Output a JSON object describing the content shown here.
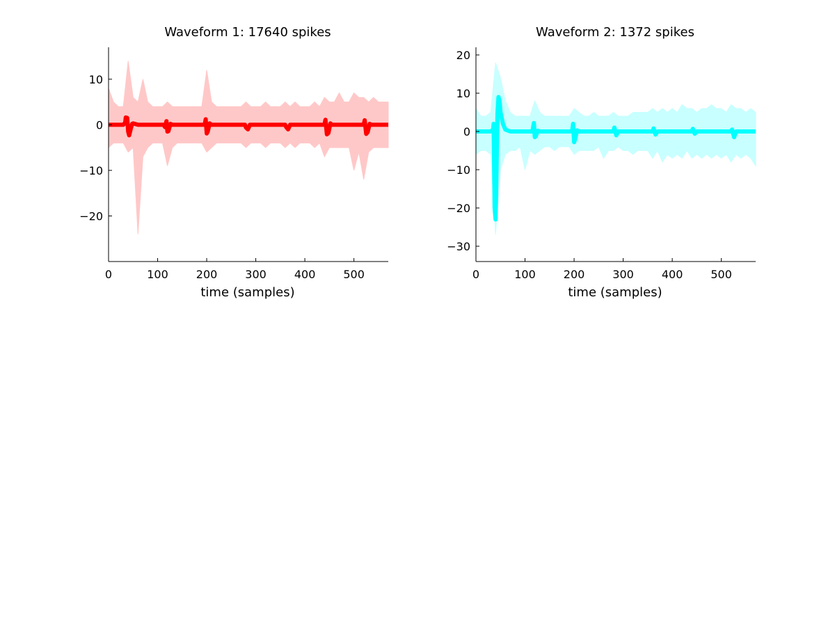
{
  "chart_data": [
    {
      "type": "line",
      "title": "Waveform 1: 17640 spikes",
      "xlabel": "time (samples)",
      "ylabel": "",
      "xlim": [
        0,
        570
      ],
      "ylim": [
        -30,
        17
      ],
      "xticks": [
        0,
        100,
        200,
        300,
        400,
        500
      ],
      "yticks": [
        10,
        0,
        -10,
        -20
      ],
      "grid": false,
      "colors": {
        "mean": "#ff0000",
        "band": "#ffc8c8"
      },
      "series": [
        {
          "role": "mean",
          "x": [
            0,
            30,
            34,
            35,
            38,
            40,
            42,
            45,
            48,
            50,
            60,
            112,
            115,
            118,
            120,
            122,
            126,
            130,
            196,
            198,
            200,
            202,
            206,
            210,
            278,
            280,
            284,
            288,
            360,
            362,
            366,
            370,
            440,
            442,
            445,
            448,
            452,
            455,
            520,
            522,
            525,
            528,
            532,
            535,
            570
          ],
          "y": [
            0,
            0,
            0.5,
            1.6,
            1.5,
            -1.5,
            -2.3,
            -1.0,
            0.2,
            0.3,
            0,
            0,
            -0.5,
            0.8,
            -1.5,
            -1.4,
            0.2,
            0,
            0,
            1.2,
            -1.9,
            -1.5,
            0.3,
            0,
            0,
            -0.6,
            -1.0,
            0,
            0,
            -0.5,
            -1.0,
            0,
            0,
            1.1,
            -2.1,
            -1.8,
            0.3,
            0,
            0,
            1.0,
            -2.0,
            -1.6,
            0.2,
            0,
            0
          ]
        }
      ],
      "band": {
        "x": [
          0,
          10,
          20,
          30,
          40,
          50,
          60,
          70,
          80,
          90,
          100,
          110,
          120,
          130,
          140,
          150,
          160,
          170,
          180,
          190,
          200,
          210,
          220,
          230,
          240,
          250,
          260,
          270,
          280,
          290,
          300,
          310,
          320,
          330,
          340,
          350,
          360,
          370,
          380,
          390,
          400,
          410,
          420,
          430,
          440,
          450,
          460,
          470,
          480,
          490,
          500,
          510,
          520,
          530,
          540,
          550,
          560,
          570
        ],
        "upper": [
          8,
          5,
          4,
          4,
          14,
          6,
          5,
          10,
          5,
          4,
          4,
          4,
          5,
          4,
          4,
          4,
          4,
          4,
          4,
          4,
          12,
          5,
          4,
          4,
          4,
          4,
          4,
          4,
          5,
          4,
          4,
          4,
          5,
          4,
          4,
          4,
          5,
          4,
          5,
          4,
          4,
          4,
          5,
          4,
          6,
          5,
          5,
          7,
          5,
          5,
          7,
          6,
          6,
          5,
          6,
          5,
          5,
          5
        ],
        "lower": [
          -5,
          -4,
          -4,
          -4,
          -6,
          -5,
          -24,
          -7,
          -5,
          -4,
          -4,
          -4,
          -9,
          -5,
          -4,
          -4,
          -4,
          -4,
          -4,
          -4,
          -6,
          -5,
          -4,
          -4,
          -4,
          -4,
          -4,
          -4,
          -5,
          -4,
          -4,
          -4,
          -5,
          -4,
          -4,
          -4,
          -5,
          -4,
          -5,
          -4,
          -4,
          -4,
          -5,
          -4,
          -7,
          -5,
          -5,
          -5,
          -5,
          -5,
          -10,
          -6,
          -12,
          -6,
          -5,
          -5,
          -5,
          -5
        ]
      }
    },
    {
      "type": "line",
      "title": "Waveform 2: 1372 spikes",
      "xlabel": "time (samples)",
      "ylabel": "",
      "xlim": [
        0,
        570
      ],
      "ylim": [
        -34,
        22
      ],
      "xticks": [
        0,
        100,
        200,
        300,
        400,
        500
      ],
      "yticks": [
        20,
        10,
        0,
        -10,
        -20,
        -30
      ],
      "grid": false,
      "colors": {
        "mean": "#00ffff",
        "band": "#c8ffff"
      },
      "series": [
        {
          "role": "mean",
          "x": [
            0,
            30,
            35,
            36,
            38,
            40,
            42,
            44,
            46,
            48,
            50,
            55,
            60,
            70,
            80,
            115,
            118,
            120,
            122,
            126,
            130,
            196,
            198,
            200,
            202,
            206,
            210,
            280,
            282,
            286,
            290,
            360,
            362,
            366,
            370,
            440,
            442,
            446,
            450,
            520,
            522,
            526,
            530,
            570
          ],
          "y": [
            0,
            0,
            0.5,
            2.0,
            -20,
            -23,
            -10,
            5,
            9,
            8,
            5,
            2,
            0.5,
            0,
            0,
            0,
            2.2,
            -1.5,
            -1.2,
            0.2,
            0,
            0,
            2.0,
            -2.8,
            -2.0,
            0.3,
            0,
            0,
            1.0,
            -1.0,
            0,
            0,
            0.8,
            -0.8,
            0,
            0,
            0.7,
            -0.6,
            0,
            0,
            0.5,
            -1.5,
            0,
            0
          ]
        }
      ],
      "band": {
        "x": [
          0,
          10,
          20,
          30,
          40,
          50,
          60,
          70,
          80,
          90,
          100,
          110,
          120,
          130,
          140,
          150,
          160,
          170,
          180,
          190,
          200,
          210,
          220,
          230,
          240,
          250,
          260,
          270,
          280,
          290,
          300,
          310,
          320,
          330,
          340,
          350,
          360,
          370,
          380,
          390,
          400,
          410,
          420,
          430,
          440,
          450,
          460,
          470,
          480,
          490,
          500,
          510,
          520,
          530,
          540,
          550,
          560,
          570
        ],
        "upper": [
          6,
          4,
          4,
          5,
          18,
          14,
          8,
          5,
          4,
          4,
          4,
          4,
          8,
          5,
          4,
          4,
          4,
          4,
          4,
          4,
          6,
          5,
          4,
          4,
          5,
          4,
          4,
          4,
          5,
          4,
          4,
          4,
          5,
          5,
          5,
          5,
          6,
          5,
          6,
          5,
          6,
          5,
          7,
          6,
          6,
          5,
          6,
          6,
          7,
          6,
          6,
          5,
          7,
          6,
          6,
          5,
          6,
          5
        ],
        "lower": [
          -6,
          -5,
          -5,
          -6,
          -27,
          -10,
          -6,
          -5,
          -5,
          -4,
          -10,
          -5,
          -6,
          -5,
          -4,
          -4,
          -5,
          -4,
          -4,
          -4,
          -6,
          -5,
          -5,
          -5,
          -5,
          -4,
          -7,
          -5,
          -5,
          -4,
          -5,
          -5,
          -6,
          -5,
          -5,
          -5,
          -7,
          -5,
          -8,
          -6,
          -7,
          -6,
          -7,
          -5,
          -7,
          -6,
          -7,
          -6,
          -7,
          -6,
          -7,
          -6,
          -8,
          -6,
          -7,
          -6,
          -7,
          -9
        ]
      }
    }
  ]
}
